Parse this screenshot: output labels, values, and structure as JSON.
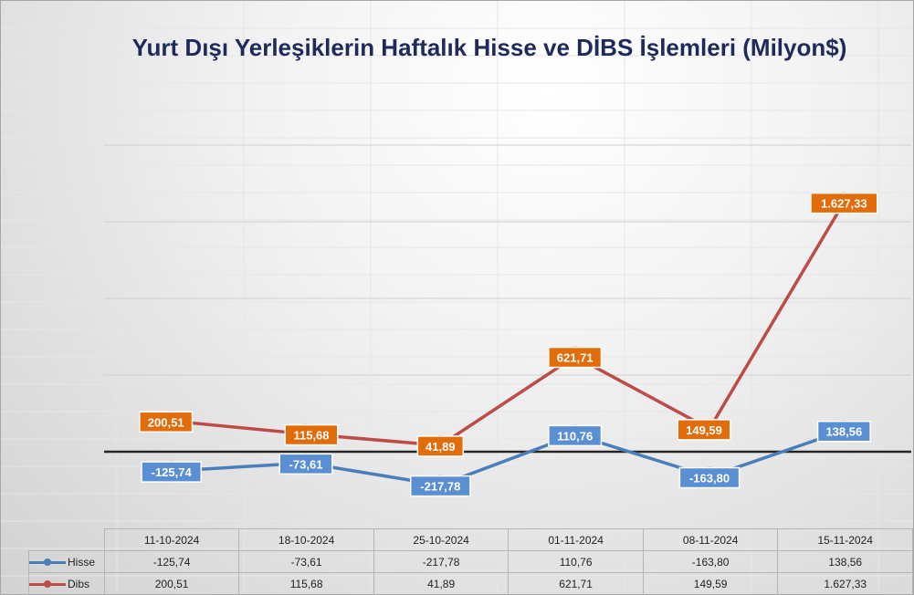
{
  "chart_data": {
    "type": "line",
    "title": "Yurt Dışı Yerleşiklerin Haftalık Hisse ve DİBS İşlemleri (Milyon$)",
    "categories": [
      "11-10-2024",
      "18-10-2024",
      "25-10-2024",
      "01-11-2024",
      "08-11-2024",
      "15-11-2024"
    ],
    "series": [
      {
        "name": "Hisse",
        "color": "#4a7ebb",
        "label_color": "#5b8fd4",
        "values": [
          -125.74,
          -73.61,
          -217.78,
          110.76,
          -163.8,
          138.56
        ],
        "labels": [
          "-125,74",
          "-73,61",
          "-217,78",
          "110,76",
          "-163,80",
          "138,56"
        ]
      },
      {
        "name": "Dibs",
        "color": "#be4b48",
        "label_color": "#e36c0a",
        "values": [
          200.51,
          115.68,
          41.89,
          621.71,
          149.59,
          1627.33
        ],
        "labels": [
          "200,51",
          "115,68",
          "41,89",
          "621,71",
          "149,59",
          "1.627,33"
        ]
      }
    ],
    "ylim": [
      -500,
      2000
    ],
    "grid": true,
    "data_table": true
  }
}
